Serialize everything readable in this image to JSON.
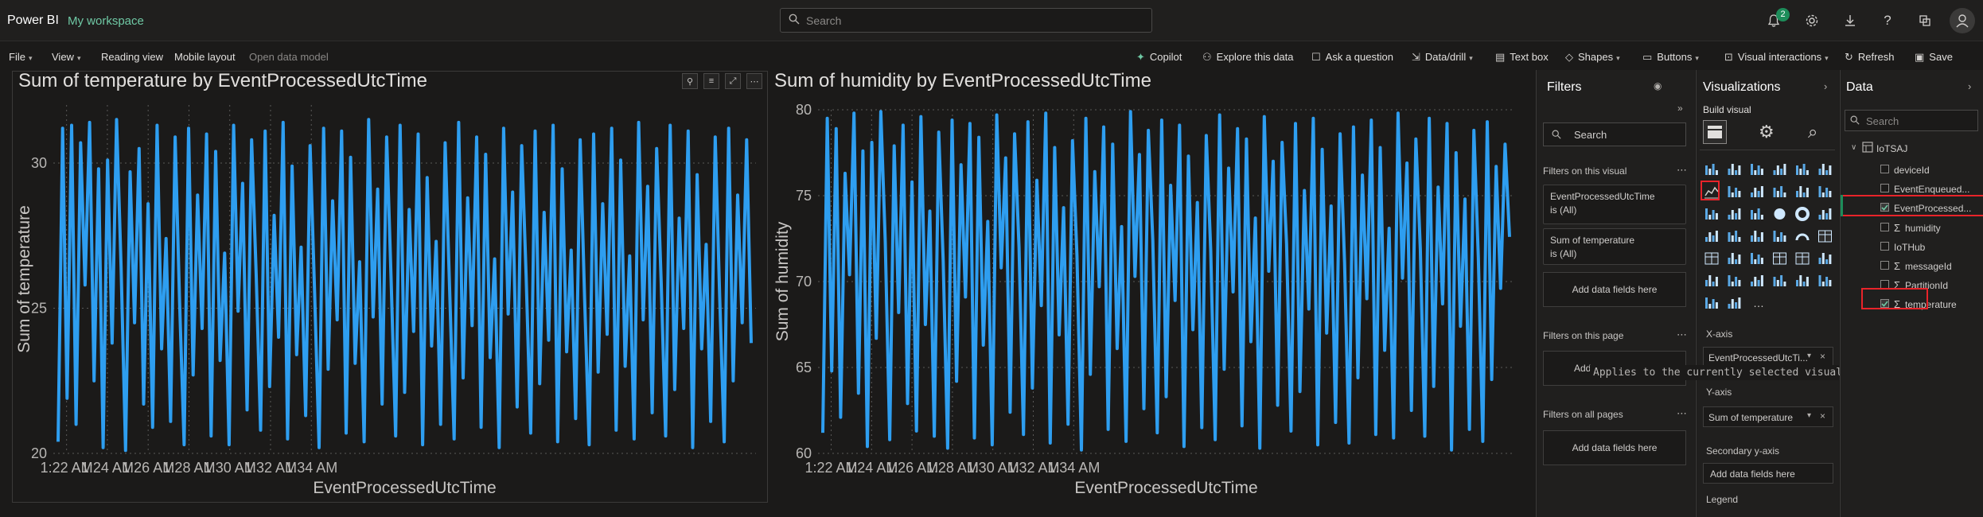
{
  "app": {
    "brand": "Power BI",
    "workspace": "My workspace"
  },
  "search": {
    "placeholder": "Search"
  },
  "notifications": {
    "count": "2"
  },
  "menu": {
    "file": "File",
    "view": "View",
    "reading_view": "Reading view",
    "mobile_layout": "Mobile layout",
    "open_data_model": "Open data model",
    "copilot": "Copilot",
    "explore": "Explore this data",
    "ask": "Ask a question",
    "data_drill": "Data/drill",
    "text_box": "Text box",
    "shapes": "Shapes",
    "buttons": "Buttons",
    "visual_interactions": "Visual interactions",
    "refresh": "Refresh",
    "save": "Save"
  },
  "colors": {
    "line": "#2e9ef0",
    "accent_green": "#6fc8a4",
    "highlight_red": "#e8242a"
  },
  "chart_data": [
    {
      "type": "line",
      "title": "Sum of temperature by EventProcessedUtcTime",
      "xlabel": "EventProcessedUtcTime",
      "ylabel": "Sum of temperature",
      "x_ticks": [
        "1:22 AM",
        "1:24 AM",
        "1:26 AM",
        "1:28 AM",
        "1:30 AM",
        "1:32 AM",
        "1:34 AM"
      ],
      "y_ticks": [
        20,
        25,
        30
      ],
      "ylim": [
        20,
        32
      ],
      "xlim_minutes": [
        1.35,
        35.8
      ],
      "grid": true,
      "series": [
        {
          "values": [
            20.4,
            31.2,
            21.9,
            31.3,
            21.0,
            30.7,
            25.8,
            31.4,
            22.5,
            29.8,
            20.2,
            30.1,
            23.8,
            31.5,
            26.4,
            20.1,
            29.7,
            24.5,
            30.5,
            21.7,
            28.6,
            20.9,
            31.3,
            23.6,
            27.4,
            21.1,
            30.9,
            25.2,
            20.3,
            31.2,
            22.7,
            28.9,
            24.3,
            31.0,
            20.6,
            30.4,
            23.2,
            26.9,
            20.3,
            31.3,
            24.9,
            29.3,
            21.5,
            30.8,
            26.2,
            20.8,
            31.1,
            22.3,
            28.2,
            24.0,
            31.4,
            20.5,
            29.9,
            23.4,
            27.1,
            21.3,
            30.6,
            25.5,
            20.2,
            31.2,
            22.9,
            28.7,
            24.6,
            31.1,
            20.7,
            30.2,
            23.1,
            26.6,
            20.4,
            31.5,
            24.7,
            29.1,
            21.7,
            30.9,
            26.0,
            20.6,
            31.3,
            22.1,
            28.4,
            24.2,
            31.0,
            20.3,
            29.5,
            23.7,
            27.3,
            21.0,
            30.7,
            25.6,
            20.5,
            31.4,
            22.6,
            28.8,
            24.4,
            30.9,
            20.9,
            30.3,
            23.3,
            26.7,
            20.2,
            31.2,
            24.8,
            29.0,
            21.6,
            30.6,
            26.1,
            20.7,
            31.1,
            22.4,
            28.3,
            23.9,
            31.3,
            20.4,
            29.8,
            23.5,
            27.0,
            21.2,
            30.8,
            25.3,
            20.3,
            31.0,
            22.8,
            28.6,
            24.1,
            31.2,
            20.8,
            30.1,
            23.0,
            26.8,
            20.5,
            31.4,
            24.6,
            29.2,
            21.4,
            30.5,
            25.9,
            20.6,
            31.3,
            22.2,
            28.1,
            24.3,
            31.1,
            20.2,
            29.6,
            23.6,
            27.2,
            21.1,
            30.9,
            25.4,
            20.4,
            31.2,
            22.5,
            28.9,
            24.5,
            30.8,
            23.8
          ]
        }
      ]
    },
    {
      "type": "line",
      "title": "Sum of humidity by EventProcessedUtcTime",
      "xlabel": "EventProcessedUtcTime",
      "ylabel": "Sum of humidity",
      "x_ticks": [
        "1:22 AM",
        "1:24 AM",
        "1:26 AM",
        "1:28 AM",
        "1:30 AM",
        "1:32 AM",
        "1:34 AM"
      ],
      "y_ticks": [
        60,
        65,
        70,
        75,
        80
      ],
      "ylim": [
        60,
        80
      ],
      "xlim_minutes": [
        1.35,
        35.8
      ],
      "grid": true,
      "series": [
        {
          "values": [
            61.2,
            79.5,
            64.8,
            78.9,
            62.1,
            76.3,
            70.4,
            79.8,
            63.5,
            77.6,
            60.4,
            78.1,
            66.7,
            79.9,
            72.3,
            60.8,
            77.9,
            68.2,
            79.1,
            62.9,
            75.8,
            61.3,
            79.6,
            67.5,
            74.1,
            61.0,
            78.7,
            71.2,
            60.3,
            79.4,
            64.2,
            76.8,
            69.1,
            79.2,
            60.9,
            78.4,
            66.3,
            73.5,
            60.5,
            79.7,
            70.8,
            77.2,
            62.4,
            78.6,
            72.0,
            61.1,
            79.3,
            63.8,
            75.9,
            68.6,
            79.8,
            60.6,
            77.8,
            66.9,
            74.3,
            61.7,
            78.2,
            71.5,
            60.2,
            79.5,
            64.6,
            76.4,
            69.7,
            79.0,
            61.4,
            78.0,
            66.1,
            73.2,
            60.7,
            79.9,
            70.3,
            77.4,
            62.6,
            78.8,
            72.4,
            61.2,
            79.4,
            63.3,
            75.6,
            68.9,
            79.1,
            60.4,
            77.3,
            67.2,
            74.6,
            61.5,
            78.5,
            71.8,
            60.8,
            79.7,
            64.9,
            76.6,
            69.4,
            78.9,
            61.6,
            78.3,
            66.5,
            73.7,
            60.3,
            79.6,
            70.6,
            77.0,
            62.8,
            78.1,
            72.2,
            61.3,
            79.2,
            63.6,
            75.3,
            68.4,
            79.5,
            60.5,
            77.7,
            67.0,
            74.4,
            61.8,
            78.6,
            71.1,
            60.6,
            79.0,
            64.4,
            76.2,
            69.0,
            79.4,
            61.1,
            77.8,
            66.0,
            73.1,
            60.9,
            79.8,
            70.2,
            76.9,
            62.5,
            78.3,
            71.9,
            61.0,
            79.5,
            63.9,
            75.5,
            68.7,
            79.2,
            60.2,
            77.5,
            67.4,
            74.8,
            61.4,
            78.8,
            71.4,
            60.7,
            79.3,
            64.3,
            76.7,
            69.6,
            78.0,
            72.6
          ]
        }
      ]
    }
  ],
  "filters": {
    "title": "Filters",
    "search_placeholder": "Search",
    "on_visual": "Filters on this visual",
    "card1_line1": "EventProcessedUtcTime",
    "card1_line2": "is (All)",
    "card2_line1": "Sum of temperature",
    "card2_line2": "is (All)",
    "add_fields": "Add data fields here",
    "on_page": "Filters on this page",
    "add_partial": "Add",
    "on_all_pages": "Filters on all pages",
    "add_fields_all": "Add data fields here"
  },
  "tooltip": "Applies to the currently selected visual",
  "viz": {
    "title": "Visualizations",
    "build_visual": "Build visual",
    "x_axis": "X-axis",
    "x_axis_field": "EventProcessedUtcTi...",
    "y_axis": "Y-axis",
    "y_axis_field": "Sum of temperature",
    "secondary_y": "Secondary y-axis",
    "secondary_add": "Add data fields here",
    "legend": "Legend"
  },
  "data_pane": {
    "title": "Data",
    "search_placeholder": "Search",
    "table": "IoTSAJ",
    "fields": [
      {
        "name": "deviceId",
        "sigma": false,
        "checked": false
      },
      {
        "name": "EventEnqueued...",
        "sigma": false,
        "checked": false
      },
      {
        "name": "EventProcessed...",
        "sigma": false,
        "checked": true
      },
      {
        "name": "humidity",
        "sigma": true,
        "checked": false
      },
      {
        "name": "IoTHub",
        "sigma": false,
        "checked": false
      },
      {
        "name": "messageId",
        "sigma": true,
        "checked": false
      },
      {
        "name": "PartitionId",
        "sigma": true,
        "checked": false
      },
      {
        "name": "temperature",
        "sigma": true,
        "checked": true
      }
    ]
  }
}
